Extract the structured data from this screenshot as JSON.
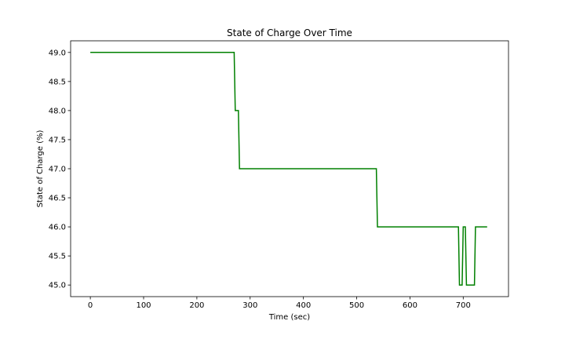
{
  "chart_data": {
    "type": "line",
    "title": "State of Charge Over Time",
    "xlabel": "Time (sec)",
    "ylabel": "State of Charge (%)",
    "xlim": [
      -37,
      785
    ],
    "ylim": [
      44.8,
      49.2
    ],
    "x_ticks": [
      0,
      100,
      200,
      300,
      400,
      500,
      600,
      700
    ],
    "y_ticks": [
      45.0,
      45.5,
      46.0,
      46.5,
      47.0,
      47.5,
      48.0,
      48.5,
      49.0
    ],
    "x_tick_labels": [
      "0",
      "100",
      "200",
      "300",
      "400",
      "500",
      "600",
      "700"
    ],
    "y_tick_labels": [
      "45.0",
      "45.5",
      "46.0",
      "46.5",
      "47.0",
      "47.5",
      "48.0",
      "48.5",
      "49.0"
    ],
    "grid": false,
    "line_color": "#008000",
    "series": [
      {
        "x": [
          0,
          270,
          272,
          278,
          280,
          537,
          539,
          691,
          693,
          698,
          700,
          704,
          706,
          721,
          723,
          745
        ],
        "y": [
          49,
          49,
          48,
          48,
          47,
          47,
          46,
          46,
          45,
          45,
          46,
          46,
          45,
          45,
          46,
          46
        ]
      }
    ]
  }
}
